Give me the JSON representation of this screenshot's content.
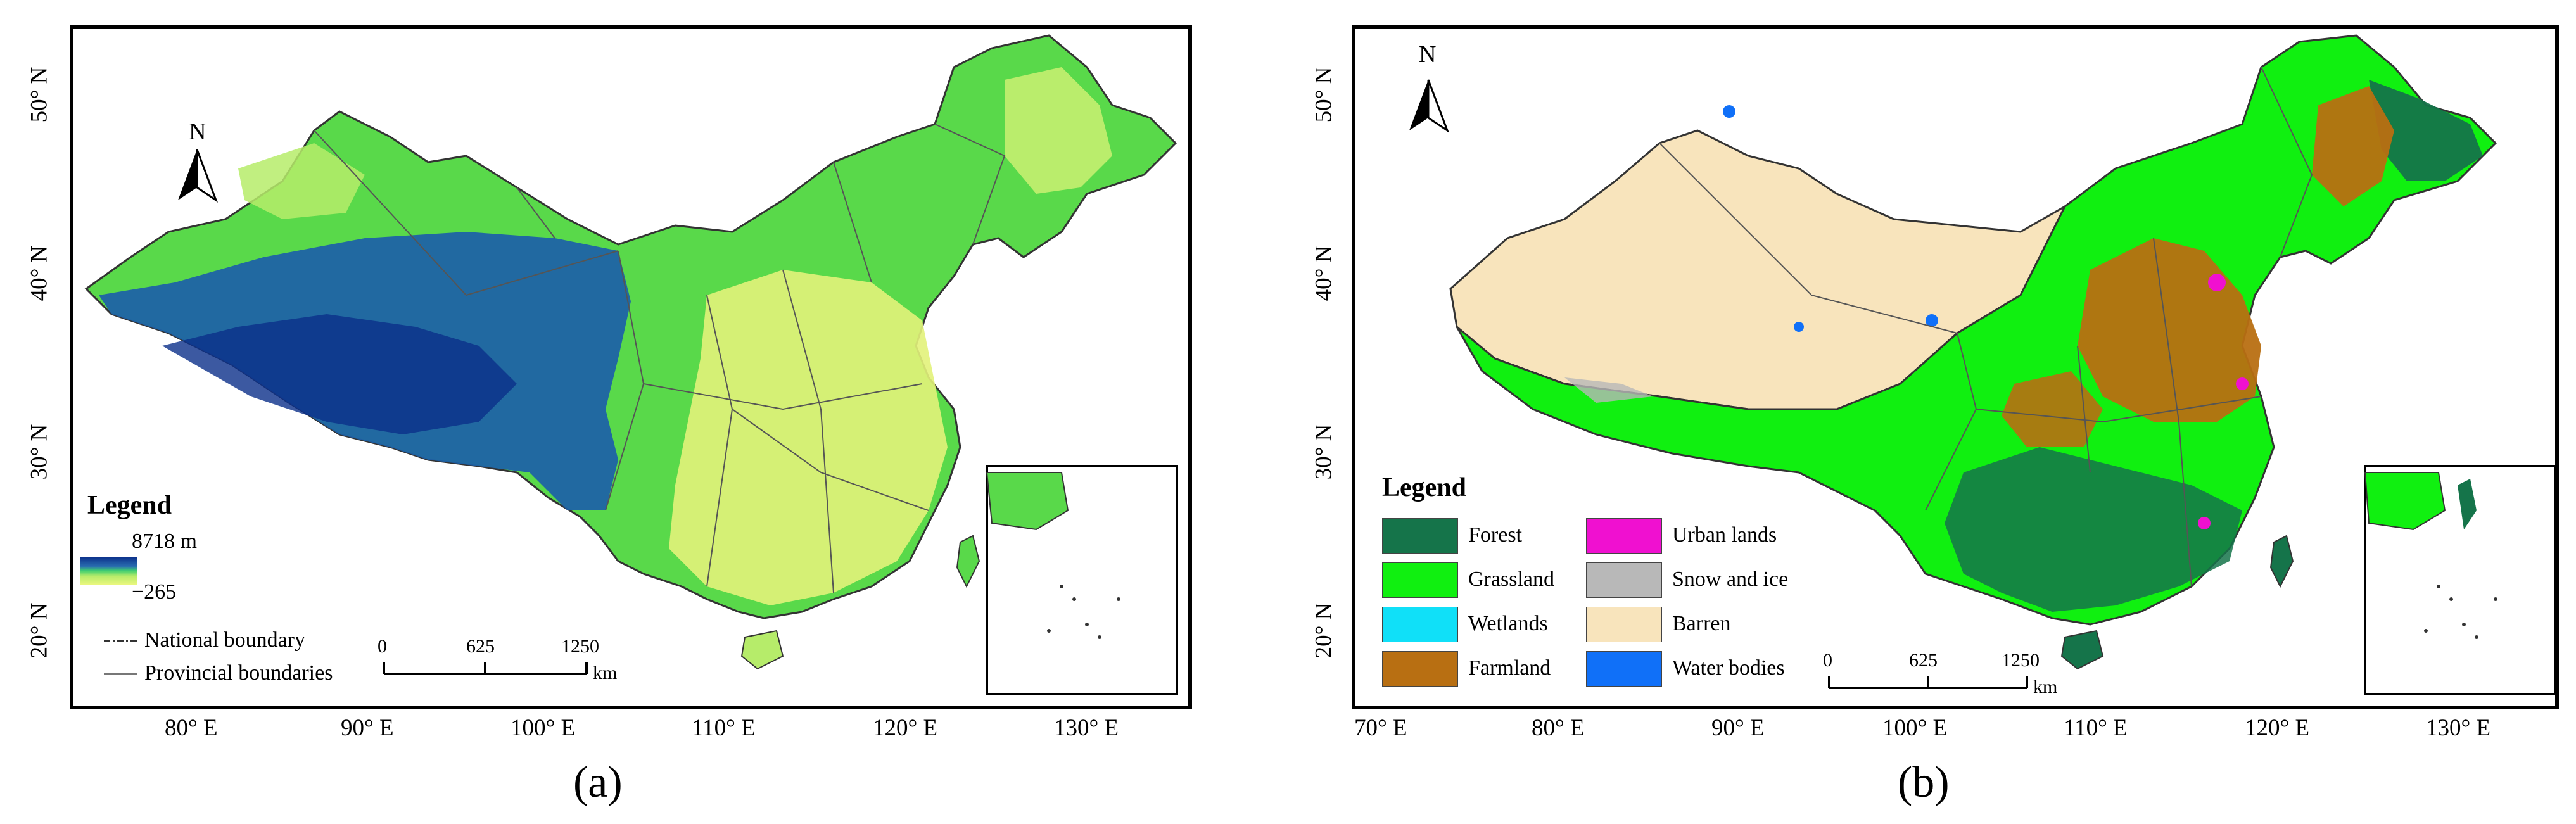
{
  "panels": [
    {
      "id": "a",
      "label": "(a)",
      "legend_title": "Legend",
      "elevation_max": "8718 m",
      "elevation_min": "−265",
      "boundary_national": "National boundary",
      "boundary_provincial": "Provincial boundaries",
      "scale": [
        "0",
        "625",
        "1250",
        "km"
      ],
      "north": "N",
      "lon_ticks": [
        "80° E",
        "90° E",
        "100° E",
        "110° E",
        "120° E",
        "130° E"
      ],
      "lat_ticks": [
        "50° N",
        "40° N",
        "30° N",
        "20° N"
      ],
      "colors": {
        "high": "#0b2f8a",
        "mid": "#22c5a0",
        "green": "#5fe04a",
        "low": "#e8f57a"
      }
    },
    {
      "id": "b",
      "label": "(b)",
      "legend_title": "Legend",
      "classes": [
        {
          "name": "Forest",
          "color": "#15744a"
        },
        {
          "name": "Grassland",
          "color": "#10f010"
        },
        {
          "name": "Wetlands",
          "color": "#10e0f8"
        },
        {
          "name": "Farmland",
          "color": "#b86f12"
        },
        {
          "name": "Urban lands",
          "color": "#f010d0"
        },
        {
          "name": "Snow and ice",
          "color": "#b8b8b8"
        },
        {
          "name": "Barren",
          "color": "#f8e4bc"
        },
        {
          "name": "Water bodies",
          "color": "#1070f8"
        }
      ],
      "scale": [
        "0",
        "625",
        "1250",
        "km"
      ],
      "north": "N",
      "lon_ticks": [
        "70° E",
        "80° E",
        "90° E",
        "100° E",
        "110° E",
        "120° E",
        "130° E"
      ],
      "lat_ticks": [
        "50° N",
        "40° N",
        "30° N",
        "20° N"
      ]
    }
  ]
}
